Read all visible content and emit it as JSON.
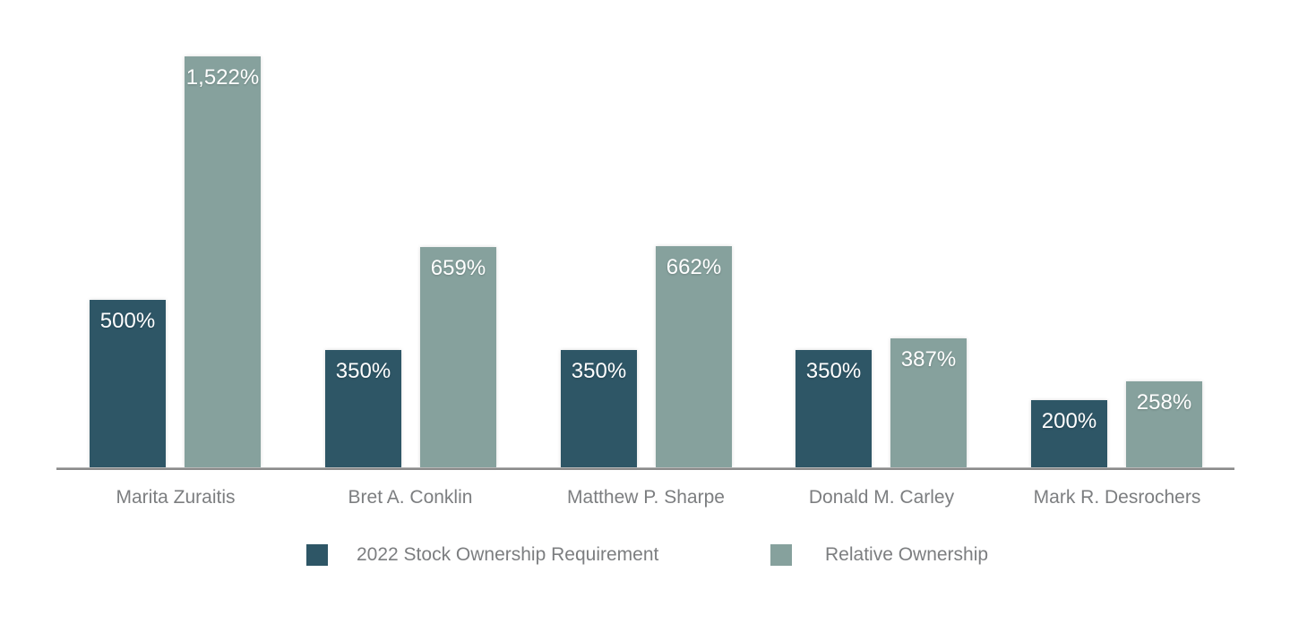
{
  "chart_data": {
    "type": "bar",
    "title": "",
    "xlabel": "",
    "ylabel": "",
    "grid": false,
    "legend_position": "bottom",
    "ylim": [
      0,
      1234
    ],
    "note": "tallest bar (1,522%) is clipped at the plot ceiling",
    "categories": [
      "Marita Zuraitis",
      "Bret A. Conklin",
      "Matthew P. Sharpe",
      "Donald M. Carley",
      "Mark R. Desrochers"
    ],
    "series": [
      {
        "name": "2022 Stock Ownership Requirement",
        "color": "#2e5666",
        "values": [
          500,
          350,
          350,
          350,
          200
        ],
        "labels": [
          "500%",
          "350%",
          "350%",
          "350%",
          "200%"
        ]
      },
      {
        "name": "Relative Ownership",
        "color": "#86a19d",
        "values": [
          1522,
          659,
          662,
          387,
          258
        ],
        "labels": [
          "1,522%",
          "659%",
          "662%",
          "387%",
          "258%"
        ]
      }
    ],
    "value_label_color": "#ffffff",
    "category_label_color": "#7c7e80",
    "axis_line_color": "#8a8a8a",
    "background_color": "#ffffff"
  }
}
